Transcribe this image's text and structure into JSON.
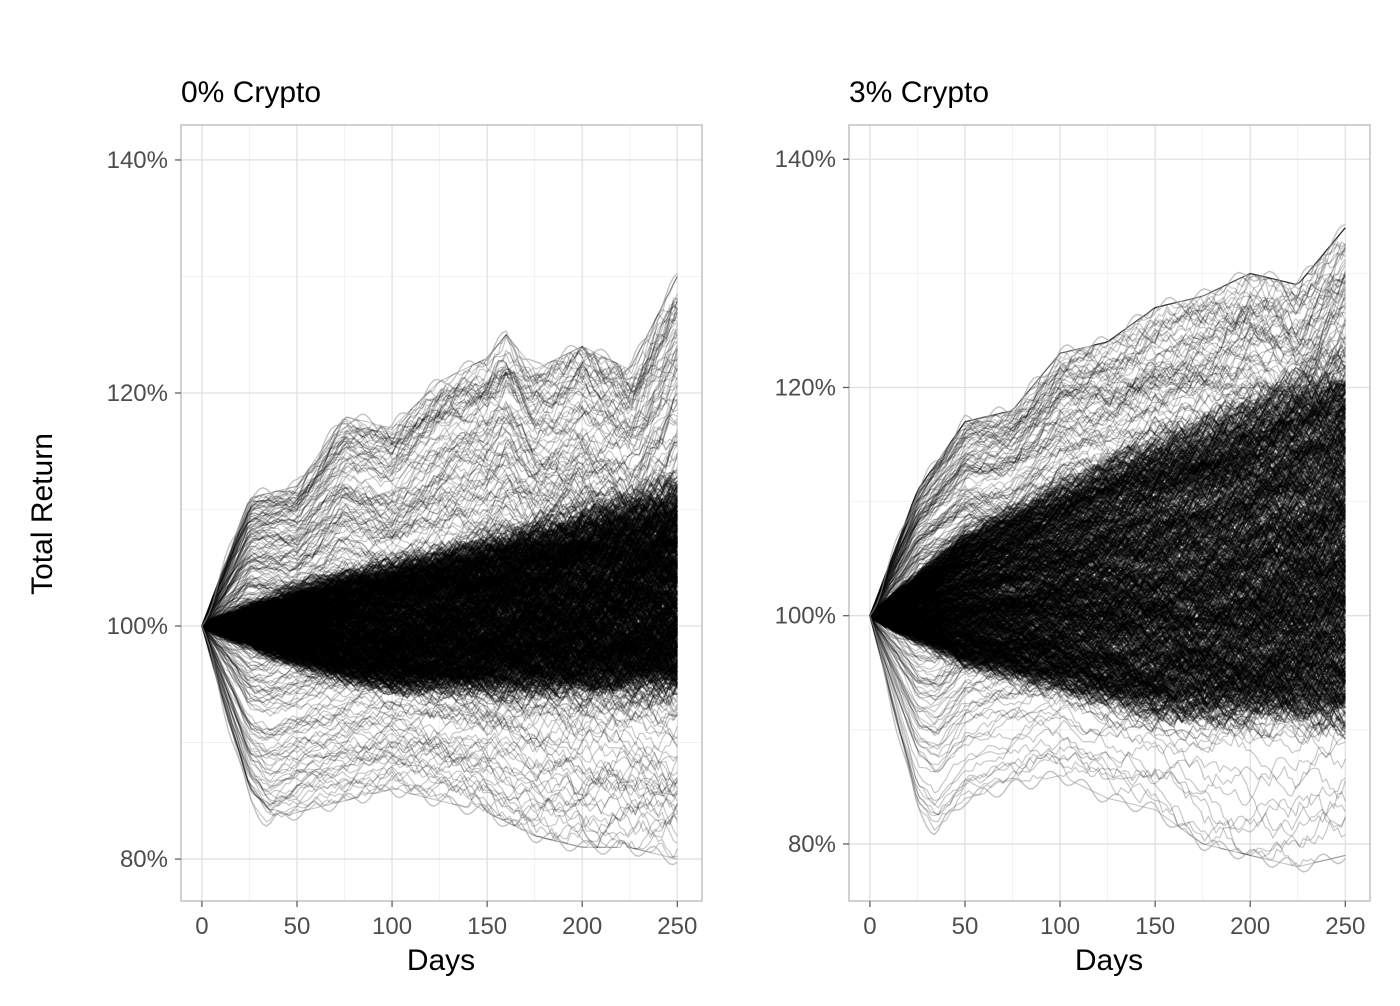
{
  "chart_data": {
    "type": "line",
    "ylabel": "Total Return",
    "panels": [
      {
        "title": "0% Crypto",
        "xlabel": "Days",
        "xlim": [
          -11,
          263
        ],
        "ylim": [
          76.4,
          143
        ],
        "x_ticks": [
          0,
          50,
          100,
          150,
          200,
          250
        ],
        "x_tick_labels": [
          "0",
          "50",
          "100",
          "150",
          "200",
          "250"
        ],
        "y_ticks": [
          80,
          100,
          120,
          140
        ],
        "y_tick_labels": [
          "80%",
          "100%",
          "120%",
          "140%"
        ],
        "n_paths": 1000,
        "start_value": 100,
        "end_range": [
          80,
          130
        ],
        "upper_envelope": [
          [
            0,
            100
          ],
          [
            25,
            111
          ],
          [
            50,
            112
          ],
          [
            75,
            118
          ],
          [
            100,
            117
          ],
          [
            125,
            121
          ],
          [
            150,
            123
          ],
          [
            160,
            125
          ],
          [
            175,
            122
          ],
          [
            200,
            124
          ],
          [
            225,
            122
          ],
          [
            250,
            130
          ]
        ],
        "lower_envelope": [
          [
            0,
            100
          ],
          [
            25,
            85
          ],
          [
            35,
            83
          ],
          [
            50,
            84
          ],
          [
            100,
            86
          ],
          [
            125,
            85
          ],
          [
            150,
            84
          ],
          [
            175,
            82
          ],
          [
            200,
            81
          ],
          [
            225,
            81
          ],
          [
            250,
            80
          ]
        ],
        "core_upper": [
          [
            0,
            100
          ],
          [
            50,
            103
          ],
          [
            100,
            105
          ],
          [
            150,
            107
          ],
          [
            200,
            109
          ],
          [
            250,
            111
          ]
        ],
        "core_lower": [
          [
            0,
            100
          ],
          [
            50,
            97
          ],
          [
            100,
            95
          ],
          [
            150,
            95
          ],
          [
            200,
            95
          ],
          [
            250,
            95
          ]
        ]
      },
      {
        "title": "3% Crypto",
        "xlabel": "Days",
        "xlim": [
          -11,
          263
        ],
        "ylim": [
          75,
          143
        ],
        "x_ticks": [
          0,
          50,
          100,
          150,
          200,
          250
        ],
        "x_tick_labels": [
          "0",
          "50",
          "100",
          "150",
          "200",
          "250"
        ],
        "y_ticks": [
          80,
          100,
          120,
          140
        ],
        "y_tick_labels": [
          "80%",
          "100%",
          "120%",
          "140%"
        ],
        "n_paths": 1000,
        "start_value": 100,
        "end_range": [
          79,
          134
        ],
        "upper_envelope": [
          [
            0,
            100
          ],
          [
            25,
            111
          ],
          [
            50,
            117
          ],
          [
            75,
            118
          ],
          [
            100,
            123
          ],
          [
            125,
            124
          ],
          [
            150,
            127
          ],
          [
            175,
            128
          ],
          [
            200,
            130
          ],
          [
            225,
            129
          ],
          [
            250,
            134
          ]
        ],
        "lower_envelope": [
          [
            0,
            100
          ],
          [
            25,
            83
          ],
          [
            35,
            81
          ],
          [
            50,
            84
          ],
          [
            100,
            86
          ],
          [
            125,
            84
          ],
          [
            150,
            83
          ],
          [
            175,
            80
          ],
          [
            200,
            79
          ],
          [
            225,
            78
          ],
          [
            250,
            79
          ]
        ],
        "core_upper": [
          [
            0,
            100
          ],
          [
            50,
            107
          ],
          [
            100,
            111
          ],
          [
            150,
            115
          ],
          [
            200,
            118
          ],
          [
            250,
            121
          ]
        ],
        "core_lower": [
          [
            0,
            100
          ],
          [
            50,
            96
          ],
          [
            100,
            94
          ],
          [
            150,
            92
          ],
          [
            200,
            92
          ],
          [
            250,
            92
          ]
        ]
      }
    ]
  }
}
